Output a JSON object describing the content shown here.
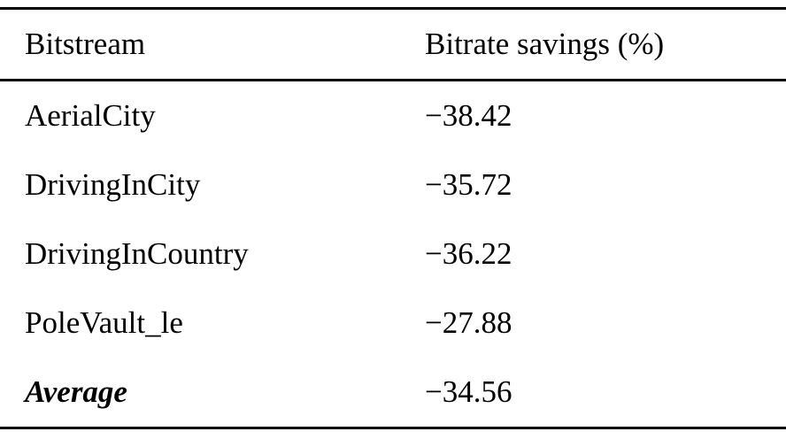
{
  "table": {
    "headers": {
      "bitstream": "Bitstream",
      "savings": "Bitrate savings (%)"
    },
    "rows": [
      {
        "bitstream": "AerialCity",
        "savings": "−38.42"
      },
      {
        "bitstream": "DrivingInCity",
        "savings": "−35.72"
      },
      {
        "bitstream": "DrivingInCountry",
        "savings": "−36.22"
      },
      {
        "bitstream": "PoleVault_le",
        "savings": "−27.88"
      },
      {
        "bitstream": "Average",
        "savings": "−34.56",
        "emphasis": "bold-italic"
      }
    ]
  },
  "chart_data": {
    "type": "table",
    "title": "",
    "columns": [
      "Bitstream",
      "Bitrate savings (%)"
    ],
    "categories": [
      "AerialCity",
      "DrivingInCity",
      "DrivingInCountry",
      "PoleVault_le",
      "Average"
    ],
    "values": [
      -38.42,
      -35.72,
      -36.22,
      -27.88,
      -34.56
    ]
  }
}
